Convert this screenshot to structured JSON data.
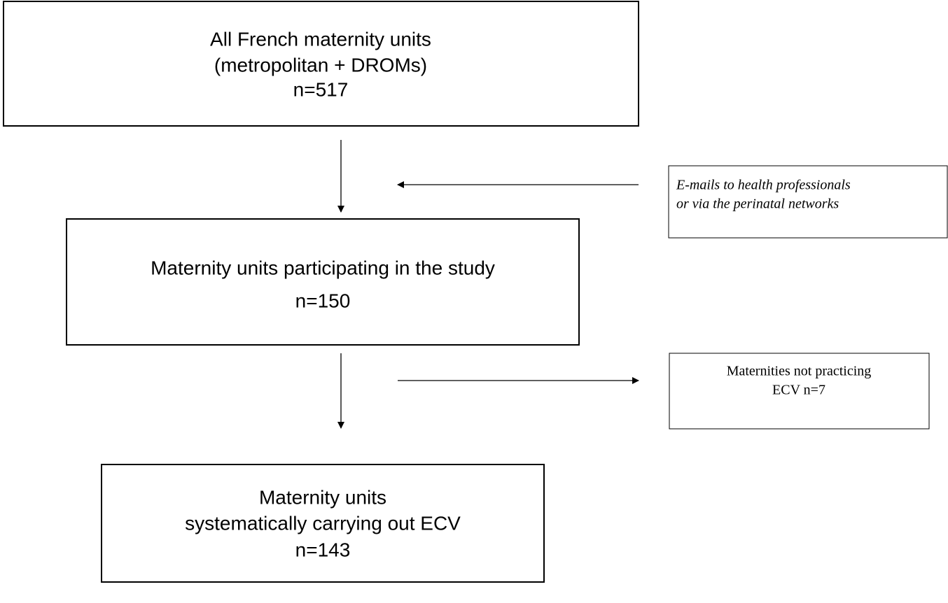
{
  "nodes": [
    {
      "lines": [
        "All French maternity units",
        "(metropolitan + DROMs)",
        "n=517"
      ]
    },
    {
      "lines": [
        "Maternity units participating in the study",
        "n=150"
      ]
    },
    {
      "lines": [
        "Maternity units",
        "systematically carrying out ECV",
        "n=143"
      ]
    },
    {
      "lines": [
        "E-mails to health professionals",
        "or via the perinatal networks"
      ]
    },
    {
      "lines": [
        "Maternities not practicing",
        "ECV n=7"
      ]
    }
  ]
}
